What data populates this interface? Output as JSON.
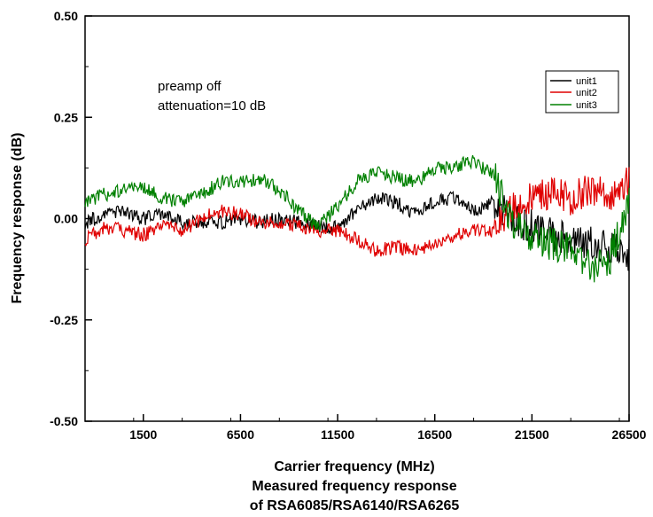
{
  "chart_data": {
    "type": "line",
    "title": "",
    "xlabel": "Carrier frequency (MHz)",
    "ylabel": "Frequency response (dB)",
    "xlim": [
      -1500,
      26500
    ],
    "ylim": [
      -0.5,
      0.5
    ],
    "x_ticks": [
      1500,
      6500,
      11500,
      16500,
      21500,
      26500
    ],
    "x_tick_labels": [
      "1500",
      "6500",
      "11500",
      "16500",
      "21500",
      "26500"
    ],
    "y_ticks": [
      -0.5,
      -0.25,
      0.0,
      0.25,
      0.5
    ],
    "y_tick_labels": [
      "-0.50",
      "-0.25",
      "0.00",
      "0.25",
      "0.50"
    ],
    "grid": false,
    "legend_position": "top-right",
    "annotations": [
      "preamp off",
      "attenuation=10 dB"
    ],
    "caption": [
      "Measured frequency response",
      "of RSA6085/RSA6140/RSA6265"
    ],
    "x": [
      -1500,
      -500,
      500,
      1500,
      2500,
      3500,
      4500,
      5500,
      6500,
      7500,
      8500,
      9500,
      10500,
      11500,
      12500,
      13500,
      14500,
      15500,
      16500,
      17500,
      18500,
      19500,
      20500,
      21500,
      22500,
      23500,
      24500,
      25500,
      26500
    ],
    "series": [
      {
        "name": "unit1",
        "color": "#000000",
        "values": [
          -0.01,
          0.01,
          0.02,
          0.0,
          0.01,
          -0.01,
          -0.01,
          -0.01,
          0.0,
          -0.01,
          0.0,
          -0.01,
          -0.02,
          -0.02,
          0.02,
          0.05,
          0.04,
          0.01,
          0.04,
          0.05,
          0.02,
          0.04,
          0.0,
          -0.02,
          -0.04,
          -0.05,
          -0.06,
          -0.07,
          -0.09
        ]
      },
      {
        "name": "unit2",
        "color": "#e00000",
        "values": [
          -0.05,
          -0.02,
          -0.03,
          -0.04,
          -0.02,
          -0.03,
          0.0,
          0.02,
          0.01,
          -0.01,
          -0.01,
          -0.02,
          -0.03,
          -0.03,
          -0.05,
          -0.08,
          -0.07,
          -0.08,
          -0.06,
          -0.04,
          -0.03,
          -0.03,
          0.03,
          0.05,
          0.06,
          0.05,
          0.07,
          0.06,
          0.09
        ]
      },
      {
        "name": "unit3",
        "color": "#008000",
        "values": [
          0.04,
          0.06,
          0.07,
          0.08,
          0.05,
          0.04,
          0.06,
          0.09,
          0.09,
          0.1,
          0.07,
          0.02,
          -0.02,
          0.03,
          0.09,
          0.12,
          0.1,
          0.09,
          0.12,
          0.13,
          0.14,
          0.11,
          -0.01,
          -0.05,
          -0.06,
          -0.08,
          -0.12,
          -0.1,
          0.04
        ]
      }
    ]
  }
}
